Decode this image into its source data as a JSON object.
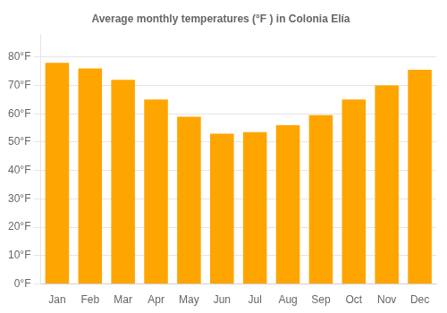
{
  "chart_data": {
    "type": "bar",
    "title": "Average monthly temperatures (°F ) in Colonia Elía",
    "categories": [
      "Jan",
      "Feb",
      "Mar",
      "Apr",
      "May",
      "Jun",
      "Jul",
      "Aug",
      "Sep",
      "Oct",
      "Nov",
      "Dec"
    ],
    "values": [
      78,
      76,
      72,
      65,
      59,
      53,
      53.5,
      56,
      59.5,
      65,
      70,
      75.5
    ],
    "color": "#FFA500",
    "ylim": [
      0,
      88
    ],
    "yticks": [
      {
        "value": 0,
        "label": "0°F"
      },
      {
        "value": 10,
        "label": "10°F"
      },
      {
        "value": 20,
        "label": "20°F"
      },
      {
        "value": 30,
        "label": "30°F"
      },
      {
        "value": 40,
        "label": "40°F"
      },
      {
        "value": 50,
        "label": "50°F"
      },
      {
        "value": 60,
        "label": "60°F"
      },
      {
        "value": 70,
        "label": "70°F"
      },
      {
        "value": 80,
        "label": "80°F"
      }
    ],
    "grid": true
  }
}
